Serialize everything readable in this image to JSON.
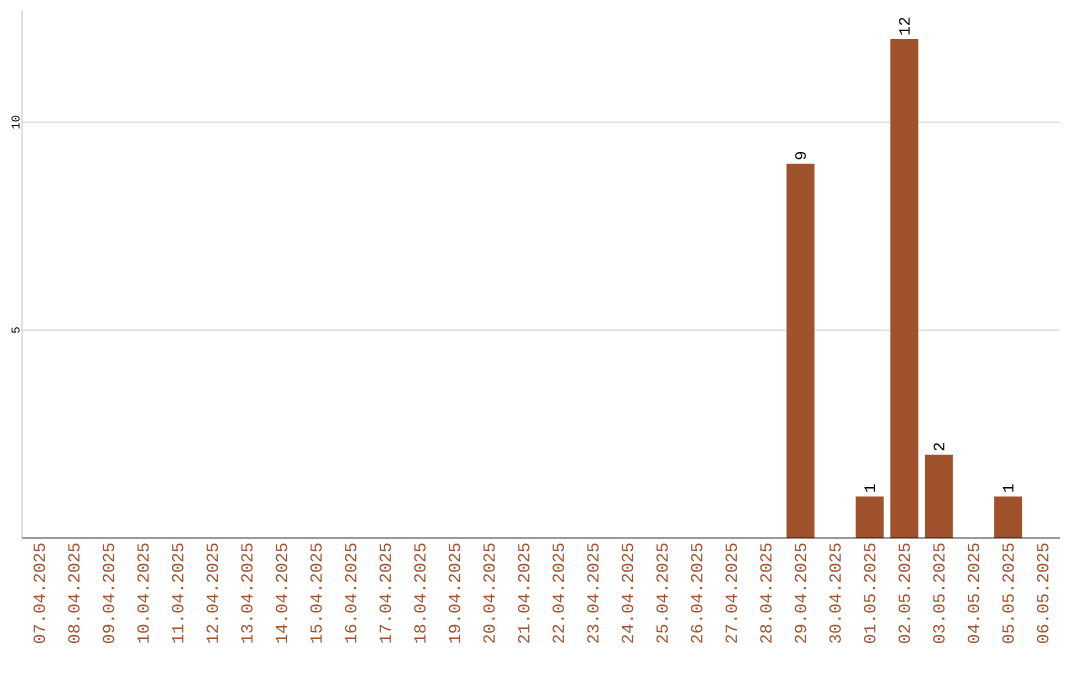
{
  "chart_data": {
    "type": "bar",
    "categories": [
      "07.04.2025",
      "08.04.2025",
      "09.04.2025",
      "10.04.2025",
      "11.04.2025",
      "12.04.2025",
      "13.04.2025",
      "14.04.2025",
      "15.04.2025",
      "16.04.2025",
      "17.04.2025",
      "18.04.2025",
      "19.04.2025",
      "20.04.2025",
      "21.04.2025",
      "22.04.2025",
      "23.04.2025",
      "24.04.2025",
      "25.04.2025",
      "26.04.2025",
      "27.04.2025",
      "28.04.2025",
      "29.04.2025",
      "30.04.2025",
      "01.05.2025",
      "02.05.2025",
      "03.05.2025",
      "04.05.2025",
      "05.05.2025",
      "06.05.2025"
    ],
    "values": [
      0,
      0,
      0,
      0,
      0,
      0,
      0,
      0,
      0,
      0,
      0,
      0,
      0,
      0,
      0,
      0,
      0,
      0,
      0,
      0,
      0,
      0,
      9,
      0,
      1,
      12,
      2,
      0,
      1,
      0
    ],
    "value_labels": [
      null,
      null,
      null,
      null,
      null,
      null,
      null,
      null,
      null,
      null,
      null,
      null,
      null,
      null,
      null,
      null,
      null,
      null,
      null,
      null,
      null,
      null,
      "9",
      null,
      "1",
      "12",
      "2",
      null,
      "1",
      null
    ],
    "color": "#a0522d",
    "ylim": [
      0,
      12.7
    ],
    "yticks": [
      5,
      10
    ],
    "grid": "y"
  }
}
